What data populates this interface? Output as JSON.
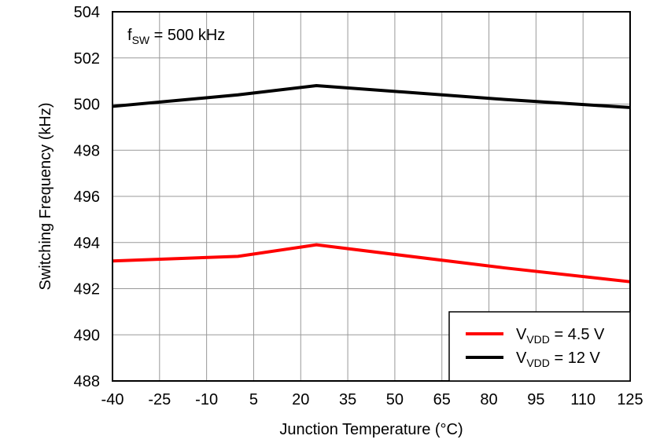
{
  "chart_data": {
    "type": "line",
    "title": "",
    "annotation": {
      "main": "f",
      "sub": "SW",
      "rest": " = 500 kHz"
    },
    "xlabel": "Junction Temperature (°C)",
    "ylabel": "Switching Frequency (kHz)",
    "xlim": [
      -40,
      125
    ],
    "ylim": [
      488,
      504
    ],
    "xticks": [
      -40,
      -25,
      -10,
      5,
      20,
      35,
      50,
      65,
      80,
      95,
      110,
      125
    ],
    "yticks": [
      488,
      490,
      492,
      494,
      496,
      498,
      500,
      502,
      504
    ],
    "grid": true,
    "legend_position": "bottom-right",
    "series": [
      {
        "name_main": "V",
        "name_sub": "VDD",
        "name_rest": " = 4.5 V",
        "color": "#ff0000",
        "x": [
          -40,
          0,
          25,
          85,
          125
        ],
        "y": [
          493.2,
          493.4,
          493.9,
          492.9,
          492.3
        ]
      },
      {
        "name_main": "V",
        "name_sub": "VDD",
        "name_rest": " = 12 V",
        "color": "#000000",
        "x": [
          -40,
          0,
          25,
          85,
          125
        ],
        "y": [
          499.9,
          500.4,
          500.8,
          500.2,
          499.85
        ]
      }
    ]
  }
}
